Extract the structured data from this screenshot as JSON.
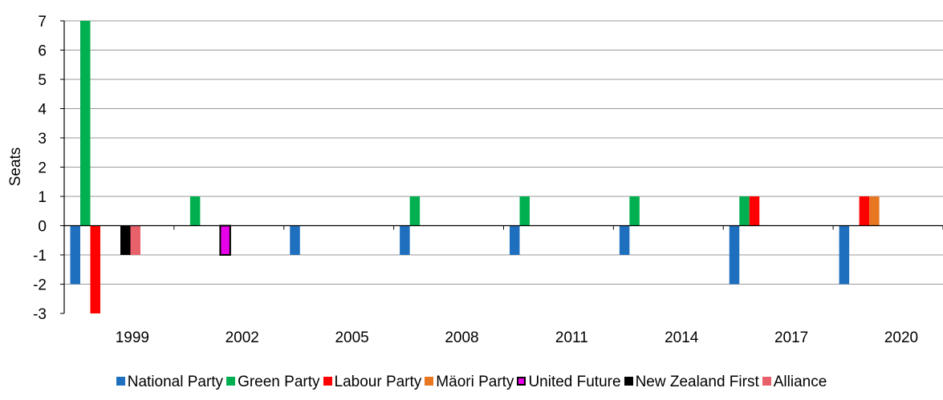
{
  "chart_data": {
    "type": "bar",
    "ylabel": "Seats",
    "ylim": [
      -3,
      7
    ],
    "yticks": [
      "7",
      "6",
      "5",
      "4",
      "3",
      "2",
      "1",
      "0",
      "-1",
      "-2",
      "-3"
    ],
    "grid": true,
    "legend_placement": "bottom",
    "categories": [
      "1999",
      "2002",
      "2005",
      "2008",
      "2011",
      "2014",
      "2017",
      "2020"
    ],
    "series": [
      {
        "name": "National Party",
        "color": "#1F6FBF",
        "values": [
          -2,
          0,
          -1,
          -1,
          -1,
          -1,
          -2,
          -2
        ]
      },
      {
        "name": "Green Party",
        "color": "#00B050",
        "values": [
          7,
          1,
          0,
          1,
          1,
          1,
          1,
          0
        ]
      },
      {
        "name": "Labour Party",
        "color": "#FF0000",
        "values": [
          -3,
          0,
          0,
          0,
          0,
          0,
          1,
          1
        ]
      },
      {
        "name": "Mäori Party",
        "color": "#E87722",
        "values": [
          0,
          0,
          0,
          0,
          0,
          0,
          0,
          1
        ]
      },
      {
        "name": "United Future",
        "color": "#E800E8",
        "outline": "#000000",
        "values": [
          0,
          -1,
          0,
          0,
          0,
          0,
          0,
          0
        ]
      },
      {
        "name": "New Zealand First",
        "color": "#000000",
        "values": [
          -1,
          0,
          0,
          0,
          0,
          0,
          0,
          0
        ]
      },
      {
        "name": "Alliance",
        "color": "#E8606A",
        "values": [
          -1,
          0,
          0,
          0,
          0,
          0,
          0,
          0
        ]
      }
    ]
  }
}
